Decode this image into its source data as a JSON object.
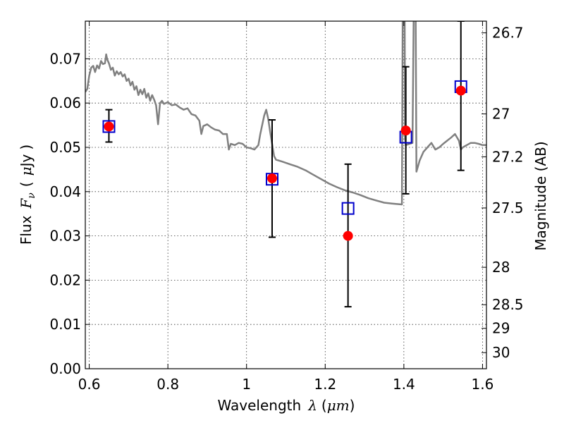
{
  "chart_data": {
    "type": "scatter",
    "xlabel": "Wavelength",
    "xlabel_symbol": "λ",
    "xlabel_unit_open": "(",
    "xlabel_unit": "μm",
    "xlabel_unit_close": ")",
    "ylabel": "Flux",
    "ylabel_symbol": "F",
    "ylabel_subscript": "ν",
    "ylabel_unit_open": "(",
    "ylabel_unit_mu": "μ",
    "ylabel_unit": "Jy",
    "ylabel_unit_close": ")",
    "y2label": "Magnitude (AB)",
    "xlim": [
      0.59,
      1.61
    ],
    "ylim": [
      0.0,
      0.0785
    ],
    "grid": true,
    "x_ticks": [
      {
        "value": 0.6,
        "label": "0.6"
      },
      {
        "value": 0.8,
        "label": "0.8"
      },
      {
        "value": 1.0,
        "label": "1"
      },
      {
        "value": 1.2,
        "label": "1.2"
      },
      {
        "value": 1.4,
        "label": "1.4"
      },
      {
        "value": 1.6,
        "label": "1.6"
      }
    ],
    "y_ticks": [
      {
        "value": 0.0,
        "label": "0.00"
      },
      {
        "value": 0.01,
        "label": "0.01"
      },
      {
        "value": 0.02,
        "label": "0.02"
      },
      {
        "value": 0.03,
        "label": "0.03"
      },
      {
        "value": 0.04,
        "label": "0.04"
      },
      {
        "value": 0.05,
        "label": "0.05"
      },
      {
        "value": 0.06,
        "label": "0.06"
      },
      {
        "value": 0.07,
        "label": "0.07"
      }
    ],
    "y2_ticks": [
      {
        "mag": 26.7,
        "label": "26.7"
      },
      {
        "mag": 27,
        "label": "27"
      },
      {
        "mag": 27.2,
        "label": "27.2"
      },
      {
        "mag": 27.5,
        "label": "27.5"
      },
      {
        "mag": 28,
        "label": "28"
      },
      {
        "mag": 28.5,
        "label": "28.5"
      },
      {
        "mag": 29,
        "label": "29"
      },
      {
        "mag": 30,
        "label": "30"
      }
    ],
    "series": [
      {
        "type": "line",
        "color": "#808080",
        "points": [
          [
            0.59,
            0.0625
          ],
          [
            0.595,
            0.0632
          ],
          [
            0.6,
            0.0662
          ],
          [
            0.605,
            0.068
          ],
          [
            0.61,
            0.0684
          ],
          [
            0.615,
            0.067
          ],
          [
            0.62,
            0.0685
          ],
          [
            0.625,
            0.0678
          ],
          [
            0.63,
            0.0695
          ],
          [
            0.635,
            0.0688
          ],
          [
            0.64,
            0.069
          ],
          [
            0.643,
            0.071
          ],
          [
            0.646,
            0.0698
          ],
          [
            0.65,
            0.069
          ],
          [
            0.655,
            0.0675
          ],
          [
            0.66,
            0.068
          ],
          [
            0.665,
            0.0662
          ],
          [
            0.67,
            0.0672
          ],
          [
            0.675,
            0.0665
          ],
          [
            0.68,
            0.067
          ],
          [
            0.685,
            0.066
          ],
          [
            0.69,
            0.0665
          ],
          [
            0.695,
            0.065
          ],
          [
            0.7,
            0.0655
          ],
          [
            0.705,
            0.064
          ],
          [
            0.71,
            0.0648
          ],
          [
            0.715,
            0.063
          ],
          [
            0.72,
            0.0638
          ],
          [
            0.725,
            0.0618
          ],
          [
            0.73,
            0.063
          ],
          [
            0.735,
            0.062
          ],
          [
            0.74,
            0.0632
          ],
          [
            0.745,
            0.0612
          ],
          [
            0.75,
            0.0622
          ],
          [
            0.755,
            0.0605
          ],
          [
            0.76,
            0.0618
          ],
          [
            0.765,
            0.0608
          ],
          [
            0.77,
            0.0595
          ],
          [
            0.775,
            0.0552
          ],
          [
            0.78,
            0.06
          ],
          [
            0.785,
            0.0605
          ],
          [
            0.79,
            0.0598
          ],
          [
            0.8,
            0.0602
          ],
          [
            0.81,
            0.0595
          ],
          [
            0.82,
            0.0597
          ],
          [
            0.83,
            0.059
          ],
          [
            0.84,
            0.0585
          ],
          [
            0.85,
            0.0588
          ],
          [
            0.86,
            0.0575
          ],
          [
            0.87,
            0.0572
          ],
          [
            0.88,
            0.056
          ],
          [
            0.885,
            0.053
          ],
          [
            0.89,
            0.0548
          ],
          [
            0.9,
            0.0552
          ],
          [
            0.91,
            0.0545
          ],
          [
            0.92,
            0.054
          ],
          [
            0.93,
            0.0538
          ],
          [
            0.94,
            0.053
          ],
          [
            0.95,
            0.053
          ],
          [
            0.955,
            0.0495
          ],
          [
            0.96,
            0.0508
          ],
          [
            0.97,
            0.0505
          ],
          [
            0.98,
            0.051
          ],
          [
            0.99,
            0.0508
          ],
          [
            1.0,
            0.05
          ],
          [
            1.01,
            0.0498
          ],
          [
            1.02,
            0.0495
          ],
          [
            1.03,
            0.0505
          ],
          [
            1.035,
            0.053
          ],
          [
            1.045,
            0.0572
          ],
          [
            1.05,
            0.0585
          ],
          [
            1.055,
            0.0565
          ],
          [
            1.06,
            0.0535
          ],
          [
            1.07,
            0.048
          ],
          [
            1.075,
            0.0472
          ],
          [
            1.09,
            0.0468
          ],
          [
            1.11,
            0.0462
          ],
          [
            1.13,
            0.0456
          ],
          [
            1.15,
            0.0448
          ],
          [
            1.17,
            0.0438
          ],
          [
            1.19,
            0.0428
          ],
          [
            1.21,
            0.0418
          ],
          [
            1.23,
            0.041
          ],
          [
            1.25,
            0.0403
          ],
          [
            1.27,
            0.0398
          ],
          [
            1.29,
            0.0392
          ],
          [
            1.31,
            0.0385
          ],
          [
            1.33,
            0.038
          ],
          [
            1.35,
            0.0375
          ],
          [
            1.37,
            0.0373
          ],
          [
            1.395,
            0.0371
          ],
          [
            1.397,
            0.08
          ],
          [
            1.402,
            0.08
          ],
          [
            1.403,
            0.052
          ],
          [
            1.405,
            0.0505
          ],
          [
            1.422,
            0.051
          ],
          [
            1.425,
            0.08
          ],
          [
            1.43,
            0.08
          ],
          [
            1.432,
            0.0445
          ],
          [
            1.44,
            0.047
          ],
          [
            1.45,
            0.049
          ],
          [
            1.46,
            0.05
          ],
          [
            1.47,
            0.051
          ],
          [
            1.48,
            0.0495
          ],
          [
            1.49,
            0.05
          ],
          [
            1.5,
            0.0508
          ],
          [
            1.51,
            0.0515
          ],
          [
            1.52,
            0.0522
          ],
          [
            1.53,
            0.053
          ],
          [
            1.54,
            0.0515
          ],
          [
            1.545,
            0.0495
          ],
          [
            1.55,
            0.05
          ],
          [
            1.56,
            0.0505
          ],
          [
            1.57,
            0.051
          ],
          [
            1.58,
            0.051
          ],
          [
            1.59,
            0.0508
          ],
          [
            1.6,
            0.0505
          ],
          [
            1.61,
            0.0505
          ]
        ]
      },
      {
        "type": "errorbar",
        "color": "#000000",
        "points": [
          {
            "x": 0.65,
            "y": 0.0547,
            "lo": 0.0512,
            "hi": 0.0585
          },
          {
            "x": 1.065,
            "y": 0.043,
            "lo": 0.0297,
            "hi": 0.0562
          },
          {
            "x": 1.258,
            "y": 0.03,
            "lo": 0.014,
            "hi": 0.0462
          },
          {
            "x": 1.405,
            "y": 0.0538,
            "lo": 0.0395,
            "hi": 0.0682
          },
          {
            "x": 1.545,
            "y": 0.0628,
            "lo": 0.0448,
            "hi": 0.0785
          }
        ]
      },
      {
        "type": "scatter",
        "marker": "square-open",
        "color": "#0000cc",
        "points": [
          [
            0.65,
            0.0547
          ],
          [
            1.065,
            0.0428
          ],
          [
            1.258,
            0.0362
          ],
          [
            1.405,
            0.0523
          ],
          [
            1.545,
            0.0637
          ]
        ]
      },
      {
        "type": "scatter",
        "marker": "circle",
        "color": "#ff0000",
        "points": [
          [
            0.65,
            0.0547
          ],
          [
            1.065,
            0.043
          ],
          [
            1.258,
            0.03
          ],
          [
            1.405,
            0.0538
          ],
          [
            1.545,
            0.0628
          ]
        ]
      }
    ]
  }
}
